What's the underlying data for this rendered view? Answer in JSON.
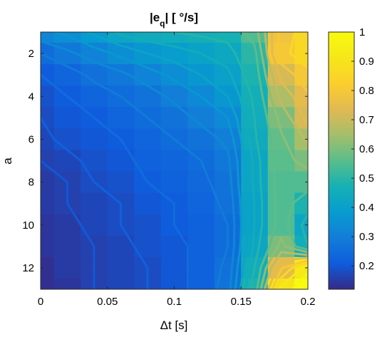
{
  "chart_data": {
    "type": "heatmap",
    "title": {
      "main": "|e",
      "sub": "q",
      "rest": "| [ °/s]"
    },
    "xlabel": "Δt [s]",
    "ylabel": "a",
    "xlim": [
      0,
      0.2
    ],
    "ylim": [
      1,
      13
    ],
    "y_direction": "reversed",
    "x_ticks": [
      0,
      0.05,
      0.1,
      0.15,
      0.2
    ],
    "x_tick_labels": [
      "0",
      "0.05",
      "0.1",
      "0.15",
      "0.2"
    ],
    "y_ticks": [
      2,
      4,
      6,
      8,
      10,
      12
    ],
    "y_tick_labels": [
      "2",
      "4",
      "6",
      "8",
      "10",
      "12"
    ],
    "colorbar": {
      "min": 0.12,
      "max": 1.0,
      "ticks": [
        0.2,
        0.3,
        0.4,
        0.5,
        0.6,
        0.7,
        0.8,
        0.9,
        1
      ],
      "tick_labels": [
        "0.2",
        "0.3",
        "0.4",
        "0.5",
        "0.6",
        "0.7",
        "0.8",
        "0.9",
        "1"
      ],
      "colormap": "parula"
    },
    "x_cells": [
      0,
      0.02,
      0.04,
      0.06,
      0.08,
      0.1,
      0.12,
      0.14,
      0.16,
      0.18,
      0.2
    ],
    "y_rows": [
      1,
      2,
      3,
      4,
      5,
      6,
      7,
      8,
      9,
      10,
      11,
      12,
      13
    ],
    "values": [
      [
        0.32,
        0.34,
        0.38,
        0.42,
        0.44,
        0.45,
        0.46,
        0.47,
        0.55,
        0.78,
        0.86
      ],
      [
        0.25,
        0.28,
        0.31,
        0.34,
        0.37,
        0.39,
        0.41,
        0.43,
        0.5,
        0.8,
        0.86
      ],
      [
        0.21,
        0.23,
        0.26,
        0.28,
        0.31,
        0.34,
        0.37,
        0.4,
        0.48,
        0.72,
        0.8
      ],
      [
        0.19,
        0.21,
        0.23,
        0.25,
        0.27,
        0.3,
        0.33,
        0.37,
        0.46,
        0.66,
        0.75
      ],
      [
        0.18,
        0.2,
        0.21,
        0.23,
        0.25,
        0.27,
        0.3,
        0.33,
        0.45,
        0.6,
        0.72
      ],
      [
        0.17,
        0.19,
        0.2,
        0.21,
        0.23,
        0.25,
        0.27,
        0.3,
        0.44,
        0.57,
        0.65
      ],
      [
        0.16,
        0.17,
        0.19,
        0.2,
        0.22,
        0.23,
        0.25,
        0.28,
        0.42,
        0.56,
        0.6
      ],
      [
        0.15,
        0.16,
        0.18,
        0.19,
        0.21,
        0.22,
        0.24,
        0.27,
        0.42,
        0.55,
        0.55
      ],
      [
        0.15,
        0.16,
        0.17,
        0.18,
        0.2,
        0.21,
        0.23,
        0.26,
        0.41,
        0.55,
        0.48
      ],
      [
        0.14,
        0.15,
        0.17,
        0.18,
        0.19,
        0.21,
        0.22,
        0.25,
        0.41,
        0.55,
        0.42
      ],
      [
        0.14,
        0.15,
        0.16,
        0.17,
        0.19,
        0.2,
        0.22,
        0.25,
        0.42,
        0.6,
        0.45
      ],
      [
        0.13,
        0.15,
        0.16,
        0.17,
        0.18,
        0.2,
        0.22,
        0.26,
        0.45,
        0.75,
        0.92
      ],
      [
        0.13,
        0.14,
        0.16,
        0.17,
        0.18,
        0.2,
        0.22,
        0.27,
        0.48,
        0.9,
        1.0
      ]
    ],
    "contour_levels": [
      0.16,
      0.18,
      0.21,
      0.25,
      0.29,
      0.33,
      0.37,
      0.41,
      0.45,
      0.52,
      0.58,
      0.64,
      0.7,
      0.76,
      0.82,
      0.88,
      0.94
    ],
    "grid": false
  }
}
